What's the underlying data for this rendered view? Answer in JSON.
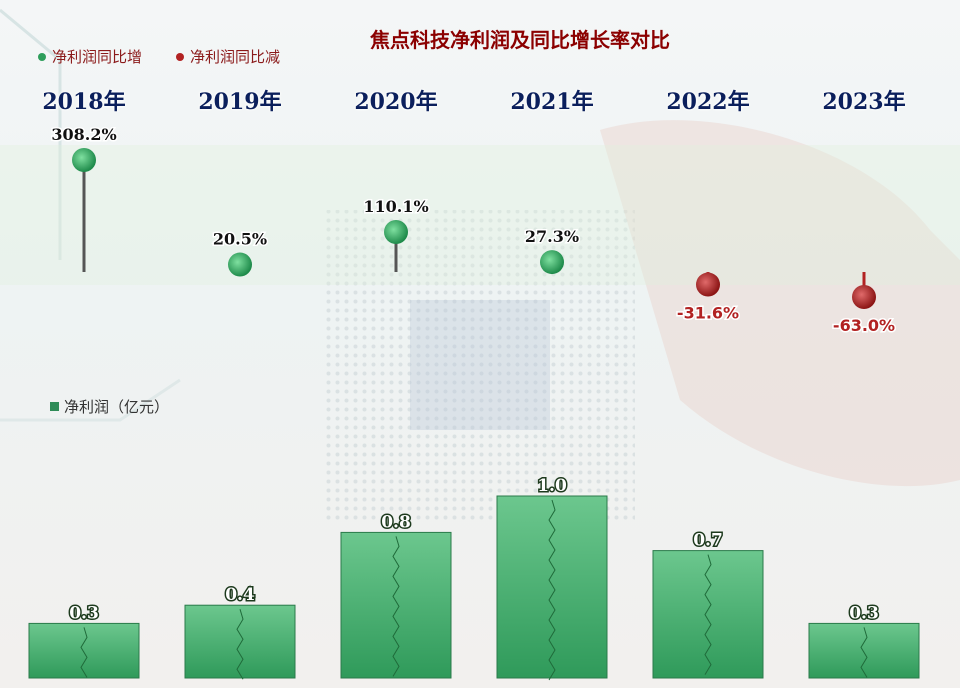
{
  "title": "焦点科技净利润及同比增长率对比",
  "legend": {
    "increase": "净利润同比增",
    "decrease": "净利润同比减",
    "profit": "净利润（亿元）"
  },
  "colors": {
    "increase": "#2e9e5b",
    "decrease": "#b22222",
    "bar": "#3fae6e",
    "title": "#8b0000",
    "year": "#0b1f5c"
  },
  "chart_data": {
    "type": "bar",
    "categories": [
      "2018年",
      "2019年",
      "2020年",
      "2021年",
      "2022年",
      "2023年"
    ],
    "series": [
      {
        "name": "净利润（亿元）",
        "values": [
          0.3,
          0.4,
          0.8,
          1.0,
          0.7,
          0.3
        ],
        "labels": [
          "0.3",
          "0.4",
          "0.8",
          "1.0",
          "0.7",
          "0.3"
        ]
      },
      {
        "name": "净利润同比增长率",
        "values": [
          308.2,
          20.5,
          110.1,
          27.3,
          -31.6,
          -63.0
        ],
        "labels": [
          "308.2%",
          "20.5%",
          "110.1%",
          "27.3%",
          "-31.6%",
          "-63.0%"
        ]
      }
    ]
  }
}
